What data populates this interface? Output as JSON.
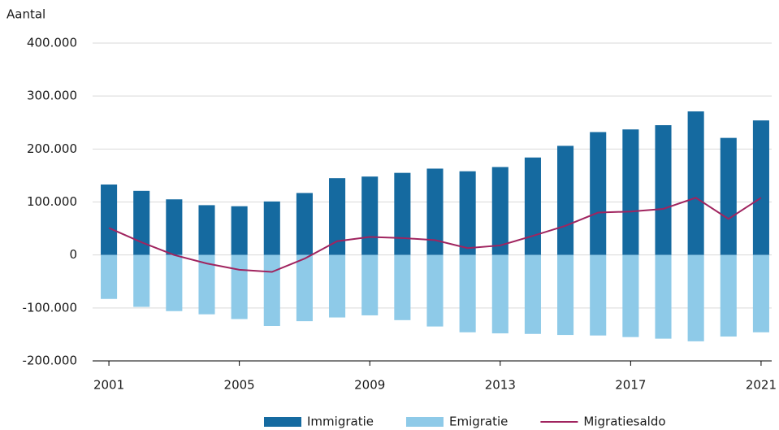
{
  "chart_data": {
    "type": "bar_line",
    "y_label": "Aantal",
    "x": [
      2001,
      2002,
      2003,
      2004,
      2005,
      2006,
      2007,
      2008,
      2009,
      2010,
      2011,
      2012,
      2013,
      2014,
      2015,
      2016,
      2017,
      2018,
      2019,
      2020,
      2021
    ],
    "xlim": [
      2000.5,
      2021.5
    ],
    "xticks": [
      2001,
      2005,
      2009,
      2013,
      2017,
      2021
    ],
    "ylim": [
      -200000,
      400000
    ],
    "yticks": [
      {
        "value": -200000,
        "label": "-200.000"
      },
      {
        "value": -100000,
        "label": "-100.000"
      },
      0,
      {
        "value": 100000,
        "label": "100.000"
      },
      {
        "value": 200000,
        "label": "200.000"
      },
      {
        "value": 300000,
        "label": "300.000"
      },
      {
        "value": 400000,
        "label": "400.000"
      }
    ],
    "grid": true,
    "legend": "bottom",
    "series": [
      {
        "name": "Immigratie",
        "type": "bar",
        "color": "#156aa0",
        "values": [
          133000,
          121000,
          105000,
          94000,
          92000,
          101000,
          117000,
          145000,
          148000,
          155000,
          163000,
          158000,
          166000,
          184000,
          206000,
          232000,
          237000,
          245000,
          271000,
          221000,
          254000
        ]
      },
      {
        "name": "Emigratie",
        "type": "bar",
        "color": "#8ecae8",
        "values": [
          -83000,
          -98000,
          -106000,
          -112000,
          -121000,
          -134000,
          -125000,
          -118000,
          -114000,
          -123000,
          -135000,
          -146000,
          -148000,
          -149000,
          -151000,
          -152000,
          -155000,
          -158000,
          -163000,
          -154000,
          -146000
        ]
      },
      {
        "name": "Migratiesaldo",
        "type": "line",
        "color": "#a0245f",
        "values": [
          51000,
          24000,
          0,
          -16000,
          -28000,
          -32000,
          -7000,
          26000,
          34000,
          32000,
          28000,
          13000,
          18000,
          36000,
          55000,
          80000,
          82000,
          87000,
          108000,
          68000,
          108000
        ]
      }
    ]
  }
}
